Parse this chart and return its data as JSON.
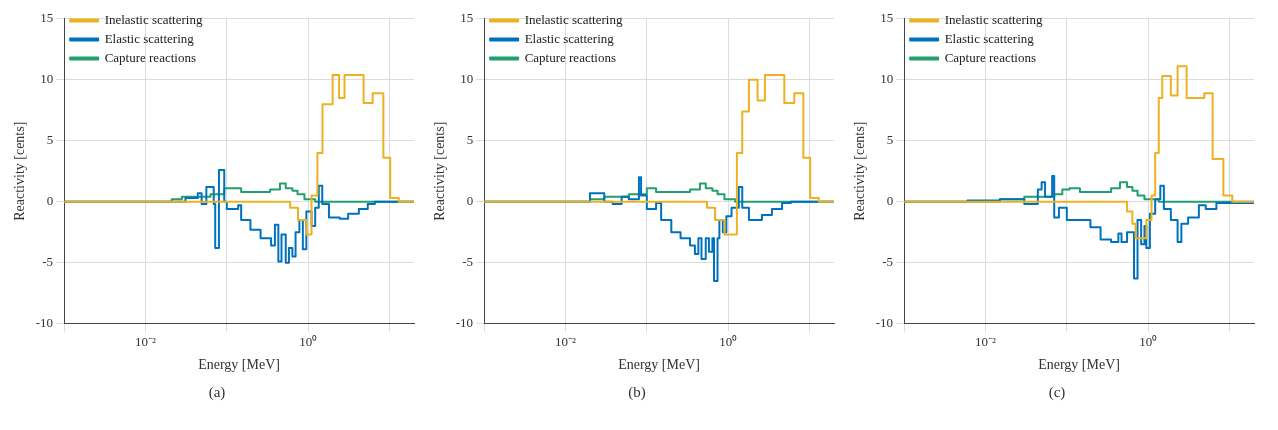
{
  "chart_data": [
    {
      "type": "step",
      "xlabel": "Energy [MeV]",
      "ylabel": "Reactivity [cents]",
      "log": "x",
      "grid": true,
      "legend": "top left",
      "xlim": [
        0.001,
        20
      ],
      "xticks": [
        {
          "value": 0.001,
          "label": null
        },
        {
          "value": 0.01,
          "label": "10⁻²"
        },
        {
          "value": 0.1,
          "label": null
        },
        {
          "value": 1,
          "label": "10⁰"
        },
        {
          "value": 10,
          "label": null
        }
      ],
      "ylim": [
        -10,
        15
      ],
      "yticks": [
        -10,
        -5,
        0,
        5,
        10,
        15
      ],
      "annotations": [
        "(a)"
      ],
      "series": [
        {
          "name": "Inelastic scattering",
          "color": "#edb120",
          "x": [
            0.001,
            0.4,
            0.6,
            0.75,
            0.95,
            1.1,
            1.3,
            1.5,
            2.0,
            2.4,
            2.8,
            4.8,
            6.2,
            8.4,
            10.2,
            13,
            20
          ],
          "values": [
            0,
            0,
            -0.5,
            -1.5,
            -2.7,
            0.5,
            4,
            8,
            10.4,
            8.5,
            10.4,
            8.1,
            8.9,
            3.6,
            0.3,
            0,
            0
          ]
        },
        {
          "name": "Elastic scattering",
          "color": "#0072bd",
          "x": [
            0.001,
            0.031,
            0.044,
            0.049,
            0.056,
            0.069,
            0.072,
            0.08,
            0.093,
            0.1,
            0.138,
            0.15,
            0.195,
            0.26,
            0.35,
            0.39,
            0.43,
            0.47,
            0.53,
            0.58,
            0.64,
            0.7,
            0.78,
            0.86,
            0.95,
            1.1,
            1.22,
            1.35,
            1.49,
            1.8,
            2.44,
            3.1,
            4.2,
            5.4,
            6.6,
            20
          ],
          "values": [
            0,
            0.3,
            0.7,
            -0.2,
            1.2,
            -0.2,
            -3.8,
            2.6,
            0,
            -0.6,
            -0.3,
            -1.5,
            -2.3,
            -3.0,
            -3.6,
            -1.9,
            -4.9,
            -2.7,
            -5.0,
            -3.8,
            -4.5,
            -2.5,
            -1.5,
            -3.9,
            -0.8,
            -2,
            -0.5,
            1.3,
            -0.2,
            -1.3,
            -1.4,
            -1.0,
            -0.6,
            -0.2,
            0,
            0
          ]
        },
        {
          "name": "Capture reactions",
          "color": "#22a06b",
          "x": [
            0.001,
            0.021,
            0.028,
            0.063,
            0.093,
            0.15,
            0.34,
            0.45,
            0.53,
            0.64,
            0.74,
            0.9,
            1.22,
            20
          ],
          "values": [
            0,
            0.2,
            0.4,
            0.6,
            1.1,
            0.8,
            1.0,
            1.5,
            1.1,
            0.9,
            0.6,
            0.2,
            0,
            0
          ]
        }
      ]
    },
    {
      "type": "step",
      "xlabel": "Energy [MeV]",
      "ylabel": "Reactivity [cents]",
      "log": "x",
      "grid": true,
      "legend": "top left",
      "xlim": [
        0.001,
        20
      ],
      "xticks": [
        {
          "value": 0.001,
          "label": null
        },
        {
          "value": 0.01,
          "label": "10⁻²"
        },
        {
          "value": 0.1,
          "label": null
        },
        {
          "value": 1,
          "label": "10⁰"
        },
        {
          "value": 10,
          "label": null
        }
      ],
      "ylim": [
        -10,
        15
      ],
      "yticks": [
        -10,
        -5,
        0,
        5,
        10,
        15
      ],
      "annotations": [
        "(b)"
      ],
      "series": [
        {
          "name": "Inelastic scattering",
          "color": "#edb120",
          "x": [
            0.001,
            0.55,
            0.69,
            0.9,
            1.28,
            1.49,
            1.8,
            2.3,
            2.83,
            4.9,
            6.5,
            8.4,
            10.2,
            13,
            20
          ],
          "values": [
            0,
            -0.5,
            -1.5,
            -2.7,
            4,
            7.4,
            10,
            8.3,
            10.4,
            8.1,
            8.9,
            3.6,
            0.3,
            0,
            0
          ]
        },
        {
          "name": "Elastic scattering",
          "color": "#0072bd",
          "x": [
            0.001,
            0.02,
            0.03,
            0.038,
            0.049,
            0.06,
            0.08,
            0.085,
            0.1,
            0.13,
            0.15,
            0.2,
            0.26,
            0.34,
            0.39,
            0.43,
            0.47,
            0.53,
            0.58,
            0.64,
            0.67,
            0.74,
            0.78,
            0.86,
            0.95,
            1.1,
            1.35,
            1.49,
            1.8,
            2.6,
            3.45,
            4.6,
            5.9,
            20
          ],
          "values": [
            0,
            0.7,
            0,
            -0.2,
            0.4,
            0.2,
            2.0,
            0.5,
            -0.6,
            -0.1,
            -1.5,
            -2.5,
            -3.0,
            -3.6,
            -4.3,
            -3.0,
            -4.7,
            -3.0,
            -4.1,
            -3.0,
            -6.5,
            -3.0,
            -1.5,
            -2.5,
            -1.2,
            -0.5,
            1.2,
            -0.5,
            -1.5,
            -1.1,
            -0.6,
            -0.1,
            0,
            0
          ]
        },
        {
          "name": "Capture reactions",
          "color": "#22a06b",
          "x": [
            0.001,
            0.02,
            0.03,
            0.06,
            0.1,
            0.13,
            0.34,
            0.45,
            0.53,
            0.64,
            0.74,
            0.9,
            1.22,
            20
          ],
          "values": [
            0,
            0.2,
            0.4,
            0.6,
            1.1,
            0.8,
            1.0,
            1.5,
            1.1,
            0.9,
            0.6,
            0.2,
            0,
            0
          ]
        }
      ]
    },
    {
      "type": "step",
      "xlabel": "Energy [MeV]",
      "ylabel": "Reactivity [cents]",
      "log": "x",
      "grid": true,
      "legend": "top left",
      "xlim": [
        0.001,
        20
      ],
      "xticks": [
        {
          "value": 0.001,
          "label": null
        },
        {
          "value": 0.01,
          "label": "10⁻²"
        },
        {
          "value": 0.1,
          "label": null
        },
        {
          "value": 1,
          "label": "10⁰"
        },
        {
          "value": 10,
          "label": null
        }
      ],
      "ylim": [
        -10,
        15
      ],
      "yticks": [
        -10,
        -5,
        0,
        5,
        10,
        15
      ],
      "annotations": [
        "(c)"
      ],
      "series": [
        {
          "name": "Inelastic scattering",
          "color": "#edb120",
          "x": [
            0.001,
            0.55,
            0.64,
            0.7,
            0.95,
            1.1,
            1.22,
            1.35,
            1.49,
            1.9,
            2.3,
            2.97,
            4.9,
            6.2,
            8.4,
            10.8,
            13,
            20
          ],
          "values": [
            0,
            -0.8,
            -1.8,
            -3.0,
            -1.5,
            0.5,
            4,
            8.5,
            10.3,
            8.7,
            11.1,
            8.5,
            8.9,
            3.5,
            0.5,
            0,
            0,
            0
          ]
        },
        {
          "name": "Elastic scattering",
          "color": "#0072bd",
          "x": [
            0.001,
            0.006,
            0.015,
            0.03,
            0.044,
            0.049,
            0.054,
            0.066,
            0.07,
            0.08,
            0.1,
            0.195,
            0.26,
            0.35,
            0.43,
            0.47,
            0.55,
            0.67,
            0.74,
            0.82,
            0.9,
            0.95,
            1.05,
            1.22,
            1.41,
            1.56,
            1.9,
            2.3,
            2.56,
            3.1,
            4.2,
            5.1,
            6.9,
            20
          ],
          "values": [
            0,
            0.1,
            0.2,
            -0.2,
            1.0,
            1.6,
            0.4,
            2.1,
            -1.3,
            -0.5,
            -1.5,
            -2.1,
            -3.1,
            -3.3,
            -2.6,
            -3.3,
            -2.5,
            -6.3,
            -1.5,
            -3.5,
            -2.0,
            -3.8,
            -1.0,
            0.2,
            1.3,
            -0.6,
            -1.5,
            -3.3,
            -1.8,
            -1.3,
            -0.3,
            -0.6,
            -0.1,
            0
          ]
        },
        {
          "name": "Capture reactions",
          "color": "#22a06b",
          "x": [
            0.001,
            0.015,
            0.03,
            0.07,
            0.088,
            0.108,
            0.145,
            0.35,
            0.45,
            0.55,
            0.64,
            0.74,
            0.9,
            1.35,
            20
          ],
          "values": [
            0,
            0.2,
            0.4,
            0.6,
            1.0,
            1.1,
            0.8,
            1.1,
            1.6,
            1.2,
            0.9,
            0.5,
            0.2,
            0,
            0
          ]
        }
      ]
    }
  ]
}
